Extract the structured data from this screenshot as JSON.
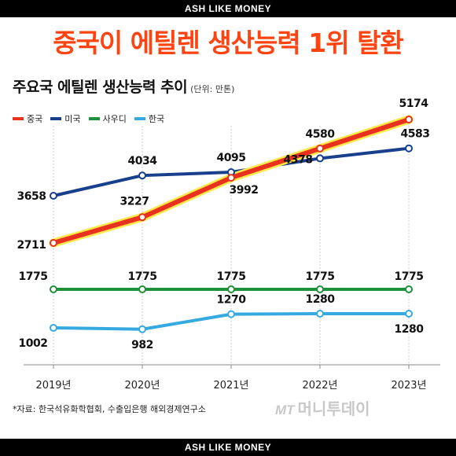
{
  "banner_top": "ASH LIKE MONEY",
  "banner_bottom": "ASH LIKE MONEY",
  "headline": "중국이 에틸렌 생산능력 1위 탈환",
  "source": "*자료: 한국석유화학협회, 수출입은행 해외경제연구소",
  "logo": {
    "prefix": "MT",
    "name": "머니투데이"
  },
  "chart_data": {
    "type": "line",
    "title": "주요국 에틸렌 생산능력 추이",
    "unit": "(단위: 만톤)",
    "x": [
      "2019년",
      "2020년",
      "2021년",
      "2022년",
      "2023년"
    ],
    "series": [
      {
        "name": "중국",
        "color": "#e8311f",
        "values": [
          2711,
          3227,
          3992,
          4580,
          5174
        ]
      },
      {
        "name": "미국",
        "color": "#173f8c",
        "values": [
          3658,
          4034,
          4095,
          4378,
          4583
        ]
      },
      {
        "name": "사우디",
        "color": "#1e8f3a",
        "values": [
          1775,
          1775,
          1775,
          1775,
          1775
        ]
      },
      {
        "name": "한국",
        "color": "#35a9e0",
        "values": [
          1002,
          982,
          1270,
          1280,
          1280
        ]
      }
    ],
    "legend_position": "top-left",
    "grid": "vertical"
  }
}
